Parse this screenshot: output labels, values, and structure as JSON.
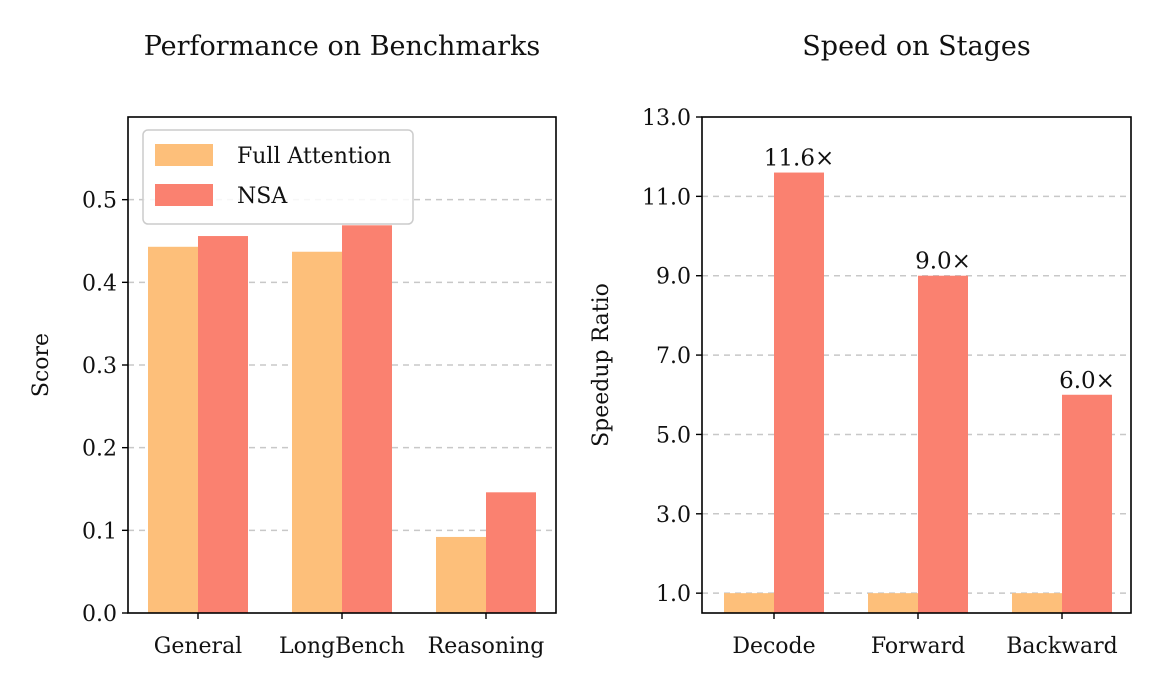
{
  "chart_data": [
    {
      "type": "bar",
      "title": "Performance on Benchmarks",
      "xlabel": "",
      "ylabel": "Score",
      "ylim": [
        0,
        0.6
      ],
      "yticks": [
        "0.0",
        "0.1",
        "0.2",
        "0.3",
        "0.4",
        "0.5"
      ],
      "ytick_values": [
        0,
        0.1,
        0.2,
        0.3,
        0.4,
        0.5
      ],
      "grid": "y-dashed",
      "legend_position": "top-left",
      "categories": [
        "General",
        "LongBench",
        "Reasoning"
      ],
      "series": [
        {
          "name": "Full Attention",
          "color": "#fdbf7a",
          "values": [
            0.443,
            0.437,
            0.092
          ]
        },
        {
          "name": "NSA",
          "color": "#fa8170",
          "values": [
            0.456,
            0.469,
            0.146
          ]
        }
      ]
    },
    {
      "type": "bar",
      "title": "Speed on Stages",
      "xlabel": "",
      "ylabel": "Speedup Ratio",
      "ylim": [
        0.5,
        13.0
      ],
      "yticks": [
        "1.0",
        "3.0",
        "5.0",
        "7.0",
        "9.0",
        "11.0",
        "13.0"
      ],
      "ytick_values": [
        1,
        3,
        5,
        7,
        9,
        11,
        13
      ],
      "grid": "y-dashed",
      "categories": [
        "Decode",
        "Forward",
        "Backward"
      ],
      "series": [
        {
          "color": "#fdbf7a",
          "values": [
            1.0,
            1.0,
            1.0
          ]
        },
        {
          "color": "#fa8170",
          "values": [
            11.6,
            9.0,
            6.0
          ],
          "labels": [
            "11.6×",
            "9.0×",
            "6.0×"
          ]
        }
      ]
    }
  ]
}
